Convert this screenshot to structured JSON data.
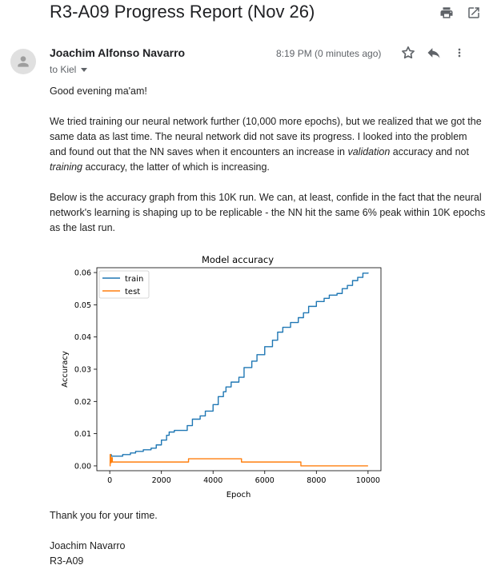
{
  "email": {
    "subject": "R3-A09 Progress Report (Nov 26)",
    "sender": "Joachim Alfonso Navarro",
    "recipient_label": "to Kiel",
    "timestamp": "8:19 PM (0 minutes ago)",
    "greeting": "Good evening ma'am!",
    "p1_a": "We tried training our neural network further (10,000 more epochs), but we realized that we got the same data as last time. The neural network did not save its progress. I looked into the problem and found out that the NN saves when it encounters an increase in ",
    "p1_em1": "validation",
    "p1_b": " accuracy and not ",
    "p1_em2": "training",
    "p1_c": " accuracy, the latter of which is increasing.",
    "p2": "Below is the accuracy graph from this 10K run. We can, at least, confide in the fact that the neural network's learning is shaping up to be replicable - the NN hit the same 6% peak within 10K epochs as the last run.",
    "thanks": "Thank you for your time.",
    "signature_name": "Joachim Navarro",
    "signature_team": "R3-A09"
  },
  "icons": {
    "print": "print-icon",
    "popout": "open-in-new-window-icon",
    "star": "star-icon",
    "reply": "reply-icon",
    "more": "more-vertical-icon",
    "avatar": "person-icon"
  },
  "chart_data": {
    "type": "line",
    "title": "Model accuracy",
    "xlabel": "Epoch",
    "ylabel": "Accuracy",
    "xlim": [
      -500,
      10500
    ],
    "ylim": [
      -0.0015,
      0.0615
    ],
    "xticks": [
      0,
      2000,
      4000,
      6000,
      8000,
      10000
    ],
    "yticks": [
      0.0,
      0.01,
      0.02,
      0.03,
      0.04,
      0.05,
      0.06
    ],
    "xtick_labels": [
      "0",
      "2000",
      "4000",
      "6000",
      "8000",
      "10000"
    ],
    "ytick_labels": [
      "0.00",
      "0.01",
      "0.02",
      "0.03",
      "0.04",
      "0.05",
      "0.06"
    ],
    "legend_position": "top-left",
    "grid": false,
    "series": [
      {
        "name": "train",
        "color": "#1f77b4",
        "step": true,
        "x": [
          0,
          30,
          60,
          100,
          200,
          500,
          800,
          1000,
          1300,
          1600,
          1800,
          2000,
          2200,
          2300,
          2500,
          2700,
          3000,
          3200,
          3500,
          3700,
          4000,
          4200,
          4400,
          4500,
          4700,
          5000,
          5200,
          5500,
          5700,
          6000,
          6300,
          6500,
          6700,
          7000,
          7300,
          7500,
          7700,
          8000,
          8300,
          8500,
          8800,
          9000,
          9200,
          9400,
          9600,
          9800,
          10000
        ],
        "y": [
          0.0025,
          0.0035,
          0.003,
          0.003,
          0.003,
          0.0035,
          0.004,
          0.0045,
          0.005,
          0.0055,
          0.0065,
          0.008,
          0.0095,
          0.0105,
          0.011,
          0.011,
          0.0125,
          0.0145,
          0.0155,
          0.017,
          0.019,
          0.0215,
          0.023,
          0.0245,
          0.026,
          0.0275,
          0.0305,
          0.0325,
          0.0345,
          0.037,
          0.039,
          0.0415,
          0.043,
          0.0445,
          0.046,
          0.0475,
          0.0495,
          0.051,
          0.052,
          0.053,
          0.0535,
          0.055,
          0.056,
          0.0575,
          0.0585,
          0.0598,
          0.06
        ]
      },
      {
        "name": "test",
        "color": "#ff7f0e",
        "step": true,
        "x": [
          0,
          15,
          30,
          60,
          100,
          200,
          500,
          1000,
          2000,
          3000,
          3050,
          4000,
          5000,
          5100,
          6000,
          7000,
          7400,
          8000,
          9000,
          10000
        ],
        "y": [
          0.0,
          0.0035,
          0.001,
          0.0025,
          0.0012,
          0.0012,
          0.0012,
          0.0012,
          0.0012,
          0.0012,
          0.0022,
          0.0022,
          0.0022,
          0.0012,
          0.0012,
          0.0012,
          0.0,
          0.0,
          0.0,
          0.0
        ]
      }
    ]
  }
}
